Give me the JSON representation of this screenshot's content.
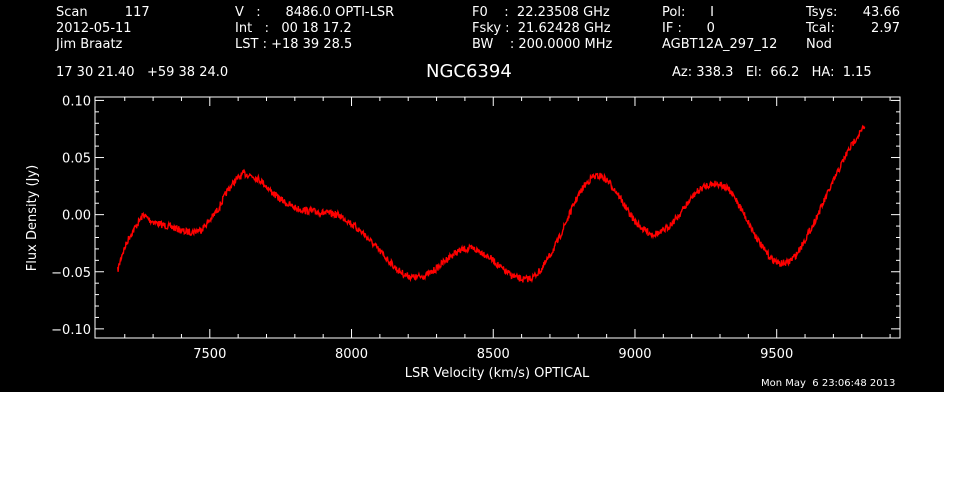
{
  "header": {
    "col1": [
      "Scan         117",
      "2012-05-11",
      "Jim Braatz"
    ],
    "col2": [
      "V   :      8486.0 OPTI-LSR",
      "Int   :   00 18 17.2",
      "LST : +18 39 28.5"
    ],
    "col3": [
      "F0    :  22.23508 GHz",
      "Fsky :  21.62428 GHz",
      "BW    : 200.0000 MHz"
    ],
    "col4": [
      "Pol:      I",
      "IF :      0",
      "AGBT12A_297_12"
    ],
    "col5a": [
      "Tsys:",
      "Tcal:",
      "Nod"
    ],
    "col5b": [
      "43.66",
      "2.97",
      ""
    ],
    "coords": "17 30 21.40   +59 38 24.0",
    "source": "NGC6394",
    "azel": "Az: 338.3   El:  66.2   HA:  1.15"
  },
  "timestamp": "Mon May  6 23:06:48 2013",
  "colors": {
    "background": "#000000",
    "axes": "#ffffff",
    "trace": "#ff0000"
  },
  "chart_data": {
    "type": "line",
    "xlabel": "LSR Velocity (km/s) OPTICAL",
    "ylabel": "Flux Density (Jy)",
    "xlim": [
      7095,
      9935
    ],
    "ylim": [
      -0.108,
      0.103
    ],
    "xticks": [
      7500,
      8000,
      8500,
      9000,
      9500
    ],
    "xtick_labels": [
      "7500",
      "8000",
      "8500",
      "9000",
      "9500"
    ],
    "yticks": [
      -0.1,
      -0.05,
      0.0,
      0.05,
      0.1
    ],
    "ytick_labels": [
      "−0.10",
      "−0.05",
      "0.00",
      "0.05",
      "0.10"
    ],
    "grid": false,
    "series": [
      {
        "color": "#ff0000",
        "x": [
          7175,
          7190,
          7215,
          7240,
          7265,
          7290,
          7320,
          7350,
          7380,
          7410,
          7440,
          7470,
          7500,
          7530,
          7560,
          7590,
          7620,
          7650,
          7680,
          7710,
          7740,
          7770,
          7800,
          7830,
          7860,
          7890,
          7920,
          7950,
          7980,
          8010,
          8040,
          8070,
          8100,
          8130,
          8160,
          8190,
          8220,
          8250,
          8280,
          8310,
          8340,
          8370,
          8400,
          8430,
          8460,
          8490,
          8520,
          8550,
          8580,
          8610,
          8640,
          8670,
          8700,
          8730,
          8760,
          8790,
          8820,
          8850,
          8880,
          8910,
          8940,
          8970,
          9000,
          9030,
          9060,
          9090,
          9120,
          9150,
          9180,
          9210,
          9240,
          9270,
          9300,
          9330,
          9360,
          9390,
          9420,
          9450,
          9480,
          9510,
          9540,
          9570,
          9600,
          9630,
          9660,
          9690,
          9720,
          9750,
          9780,
          9810
        ],
        "y": [
          -0.049,
          -0.035,
          -0.02,
          -0.01,
          0.0,
          -0.005,
          -0.008,
          -0.01,
          -0.012,
          -0.015,
          -0.015,
          -0.013,
          -0.005,
          0.005,
          0.02,
          0.03,
          0.036,
          0.034,
          0.03,
          0.022,
          0.015,
          0.01,
          0.006,
          0.004,
          0.003,
          0.002,
          0.001,
          0.0,
          -0.004,
          -0.01,
          -0.016,
          -0.024,
          -0.032,
          -0.04,
          -0.048,
          -0.053,
          -0.055,
          -0.054,
          -0.051,
          -0.045,
          -0.038,
          -0.033,
          -0.03,
          -0.03,
          -0.033,
          -0.038,
          -0.045,
          -0.051,
          -0.055,
          -0.057,
          -0.055,
          -0.048,
          -0.036,
          -0.022,
          -0.005,
          0.012,
          0.025,
          0.033,
          0.034,
          0.028,
          0.018,
          0.005,
          -0.006,
          -0.013,
          -0.017,
          -0.016,
          -0.01,
          -0.002,
          0.008,
          0.018,
          0.024,
          0.027,
          0.027,
          0.022,
          0.012,
          -0.002,
          -0.016,
          -0.029,
          -0.038,
          -0.043,
          -0.042,
          -0.035,
          -0.022,
          -0.008,
          0.008,
          0.024,
          0.04,
          0.055,
          0.067,
          0.077
        ]
      }
    ]
  }
}
